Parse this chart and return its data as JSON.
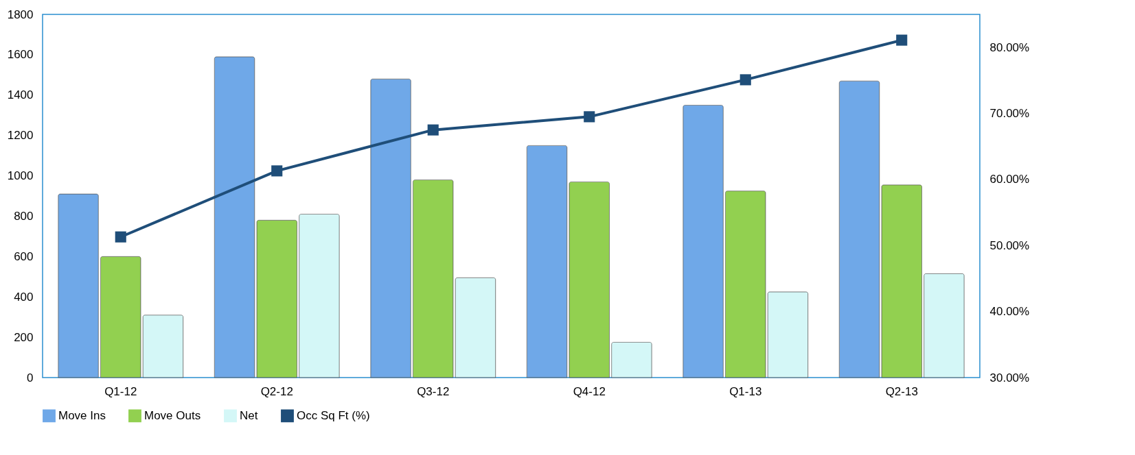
{
  "chart_data": {
    "type": "bar",
    "categories": [
      "Q1-12",
      "Q2-12",
      "Q3-12",
      "Q4-12",
      "Q1-13",
      "Q2-13"
    ],
    "series": [
      {
        "name": "Move Ins",
        "color": "#6fa8e8",
        "values": [
          910,
          1590,
          1480,
          1150,
          1350,
          1470
        ]
      },
      {
        "name": "Move Outs",
        "color": "#92d050",
        "values": [
          600,
          780,
          980,
          970,
          925,
          955
        ]
      },
      {
        "name": "Net",
        "color": "#d4f7f7",
        "values": [
          310,
          810,
          495,
          175,
          425,
          515
        ]
      },
      {
        "name": "Occ Sq Ft (%)",
        "type": "line",
        "axis": "y2",
        "color": "#1f4e79",
        "values": [
          51.3,
          61.3,
          67.5,
          69.5,
          75.1,
          81.1
        ]
      }
    ],
    "ylim": [
      0,
      1800
    ],
    "yticks": [
      0,
      200,
      400,
      600,
      800,
      1000,
      1200,
      1400,
      1600,
      1800
    ],
    "y2lim": [
      30,
      85
    ],
    "y2ticks": [
      {
        "value": 30,
        "label": "30.00%"
      },
      {
        "value": 40,
        "label": "40.00%"
      },
      {
        "value": 50,
        "label": "50.00%"
      },
      {
        "value": 60,
        "label": "60.00%"
      },
      {
        "value": 70,
        "label": "70.00%"
      },
      {
        "value": 80,
        "label": "80.00%"
      }
    ],
    "marker": "square",
    "legend": "bottom",
    "grid": false
  }
}
